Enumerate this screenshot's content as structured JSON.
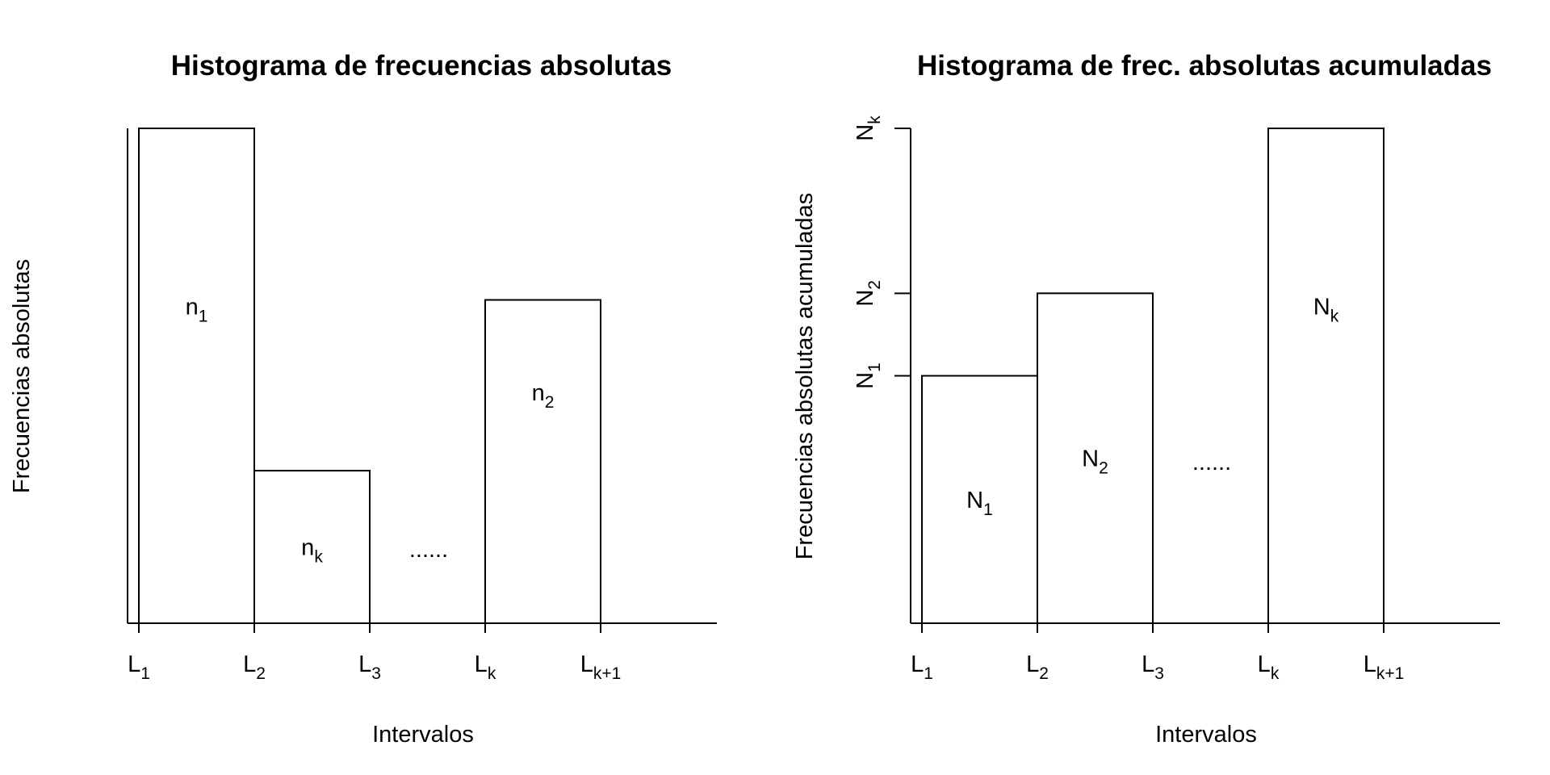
{
  "chart_data": [
    {
      "type": "bar",
      "title": "Histograma de frecuencias absolutas",
      "xlabel": "Intervalos",
      "ylabel": "Frecuencias absolutas",
      "x_ticks": [
        {
          "base": "L",
          "sub": "1"
        },
        {
          "base": "L",
          "sub": "2"
        },
        {
          "base": "L",
          "sub": "3"
        },
        {
          "base": "L",
          "sub": "k"
        },
        {
          "base": "L",
          "sub": "k+1"
        }
      ],
      "y_ticks": [],
      "xlim": [
        0,
        5
      ],
      "ylim": [
        0,
        6
      ],
      "bars": [
        {
          "x0": 0,
          "x1": 1,
          "value": 6,
          "label_base": "n",
          "label_sub": "1"
        },
        {
          "x0": 1,
          "x1": 2,
          "value": 1.85,
          "label_base": "n",
          "label_sub": "k"
        },
        {
          "x0": 3,
          "x1": 4,
          "value": 3.92,
          "label_base": "n",
          "label_sub": "2"
        }
      ],
      "annotation": "......"
    },
    {
      "type": "bar",
      "title": "Histograma de frec. absolutas acumuladas",
      "xlabel": "Intervalos",
      "ylabel": "Frecuencias absolutas acumuladas",
      "x_ticks": [
        {
          "base": "L",
          "sub": "1"
        },
        {
          "base": "L",
          "sub": "2"
        },
        {
          "base": "L",
          "sub": "3"
        },
        {
          "base": "L",
          "sub": "k"
        },
        {
          "base": "L",
          "sub": "k+1"
        }
      ],
      "y_ticks": [
        {
          "value": 3,
          "base": "N",
          "sub": "1"
        },
        {
          "value": 4,
          "base": "N",
          "sub": "2"
        },
        {
          "value": 6,
          "base": "N",
          "sub": "k"
        }
      ],
      "xlim": [
        0,
        5
      ],
      "ylim": [
        0,
        6
      ],
      "bars": [
        {
          "x0": 0,
          "x1": 1,
          "value": 3,
          "label_base": "N",
          "label_sub": "1"
        },
        {
          "x0": 1,
          "x1": 2,
          "value": 4,
          "label_base": "N",
          "label_sub": "2"
        },
        {
          "x0": 3,
          "x1": 4,
          "value": 6,
          "label_base": "N",
          "label_sub": "k"
        }
      ],
      "annotation": "......"
    }
  ]
}
